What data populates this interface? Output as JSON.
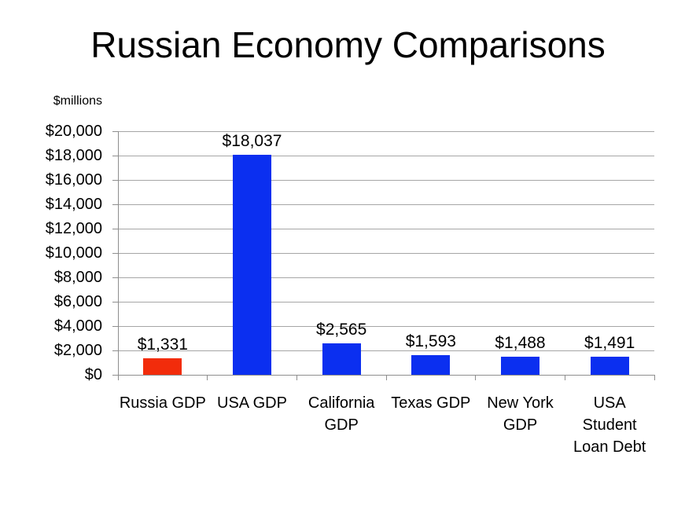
{
  "slide": {
    "title": "Russian Economy Comparisons"
  },
  "chart_data": {
    "type": "bar",
    "title": "Russian Economy Comparisons",
    "unit_label": "$millions",
    "categories": [
      "Russia GDP",
      "USA GDP",
      "California GDP",
      "Texas GDP",
      "New York GDP",
      "USA Student Loan Debt"
    ],
    "category_lines": [
      [
        "Russia GDP"
      ],
      [
        "USA GDP"
      ],
      [
        "California",
        "GDP"
      ],
      [
        "Texas GDP"
      ],
      [
        "New York",
        "GDP"
      ],
      [
        "USA",
        "Student",
        "Loan Debt"
      ]
    ],
    "values": [
      1331,
      18037,
      2565,
      1593,
      1488,
      1491
    ],
    "data_labels": [
      "$1,331",
      "$18,037",
      "$2,565",
      "$1,593",
      "$1,488",
      "$1,491"
    ],
    "bar_colors": [
      "#f22c0b",
      "#0b2ff0",
      "#0b2ff0",
      "#0b2ff0",
      "#0b2ff0",
      "#0b2ff0"
    ],
    "highlight_color": "#f22c0b",
    "series_color": "#0b2ff0",
    "xlabel": "",
    "ylabel": "$millions",
    "ylim": [
      0,
      20000
    ],
    "ytick_step": 2000,
    "ytick_labels": [
      "$0",
      "$2,000",
      "$4,000",
      "$6,000",
      "$8,000",
      "$10,000",
      "$12,000",
      "$14,000",
      "$16,000",
      "$18,000",
      "$20,000"
    ],
    "grid": true,
    "legend": "none",
    "gridline_color": "#a6a6a6",
    "axis_color": "#8e8e8e",
    "label_color": "#000000"
  }
}
